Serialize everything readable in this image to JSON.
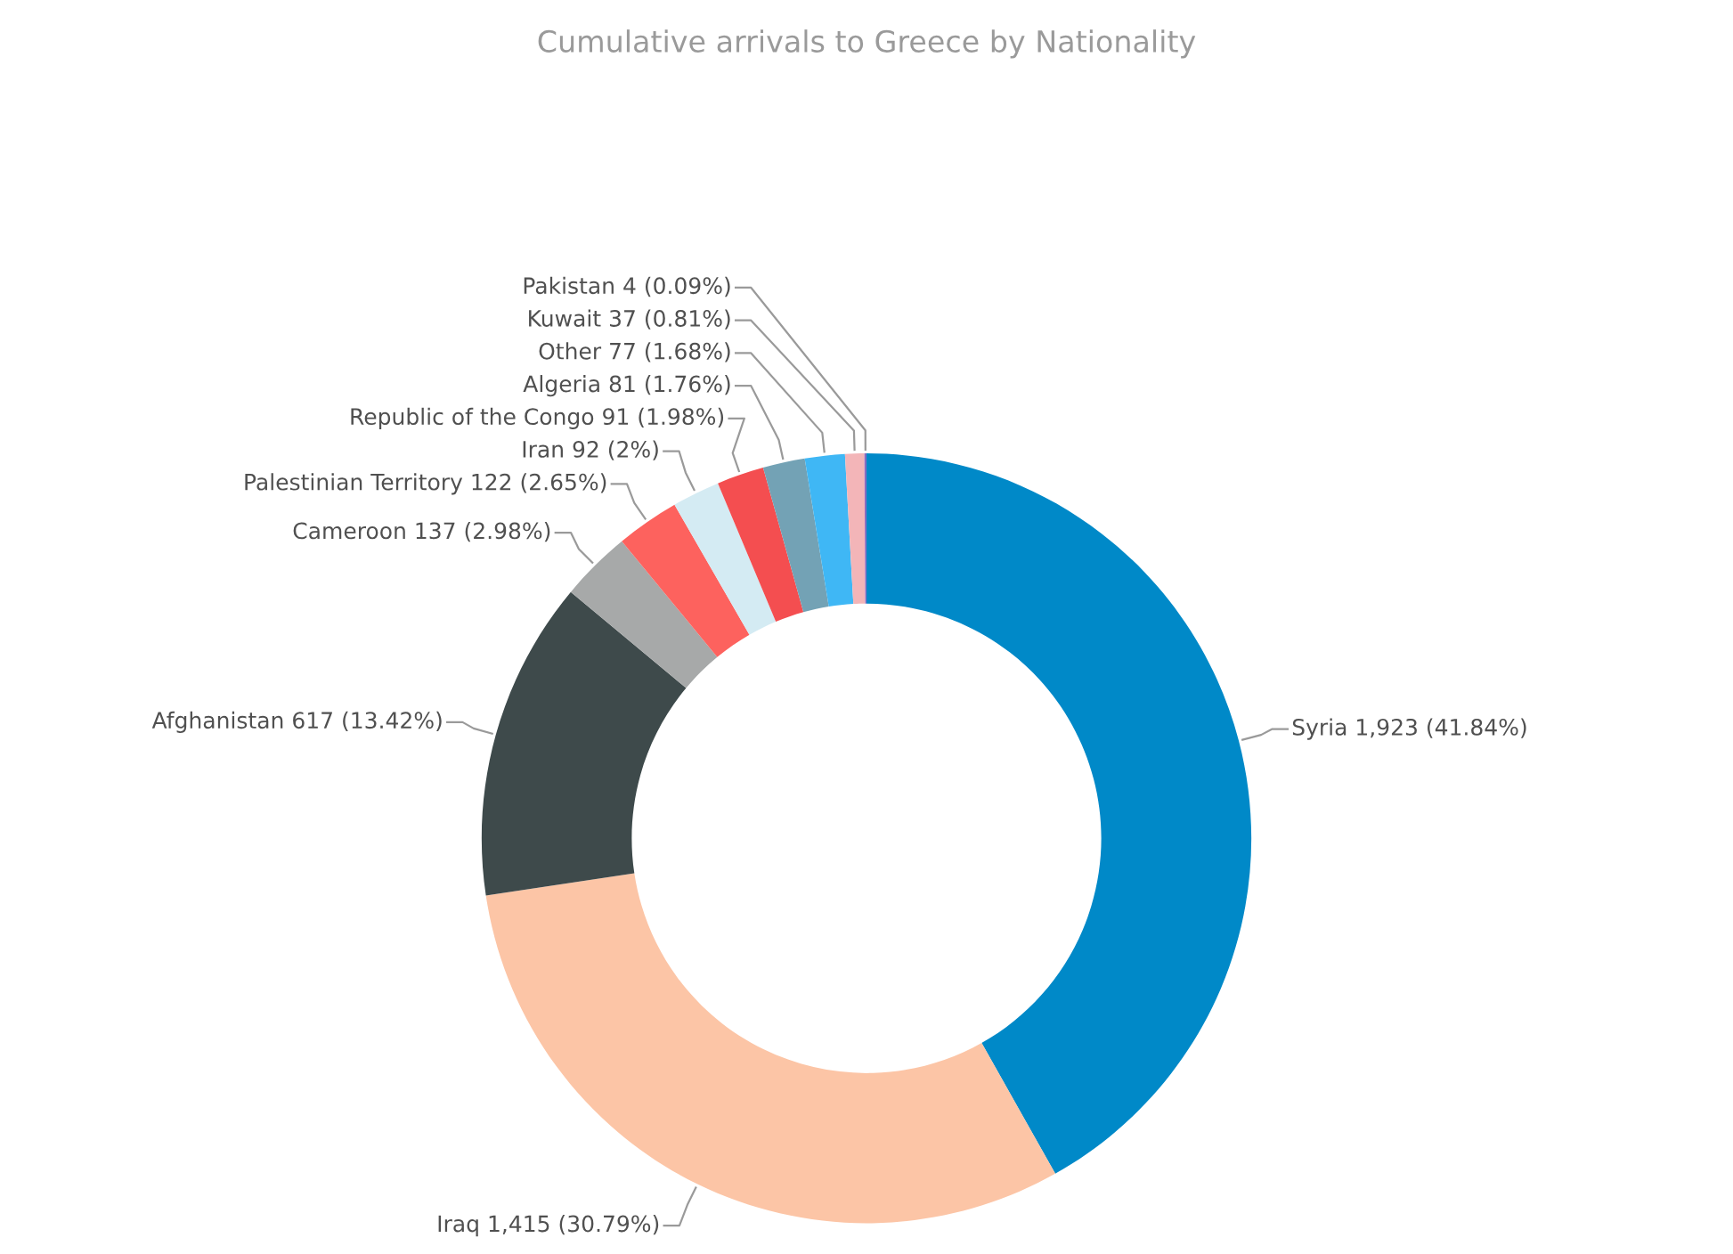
{
  "chart_data": {
    "type": "donut",
    "title": "Cumulative arrivals to Greece by Nationality",
    "categories": [
      "Syria",
      "Iraq",
      "Afghanistan",
      "Cameroon",
      "Palestinian Territory",
      "Iran",
      "Republic of the Congo",
      "Algeria",
      "Other",
      "Kuwait",
      "Pakistan"
    ],
    "values": [
      1923,
      1415,
      617,
      137,
      122,
      92,
      91,
      81,
      77,
      37,
      4
    ],
    "colors": [
      "#0089c8",
      "#fcc5a6",
      "#3e4a4b",
      "#a7a9a9",
      "#fd625e",
      "#d4ebf3",
      "#f44e50",
      "#73a2b5",
      "#3fb7f5",
      "#f3b5b8",
      "#8a6bbf"
    ],
    "value_labels": [
      "1,923 (41.84%)",
      "1,415 (30.79%)",
      "617 (13.42%)",
      "137 (2.98%)",
      "122 (2.65%)",
      "92 (2%)",
      "91 (1.98%)",
      "81 (1.76%)",
      "77 (1.68%)",
      "37 (0.81%)",
      "4 (0.09%)"
    ]
  }
}
